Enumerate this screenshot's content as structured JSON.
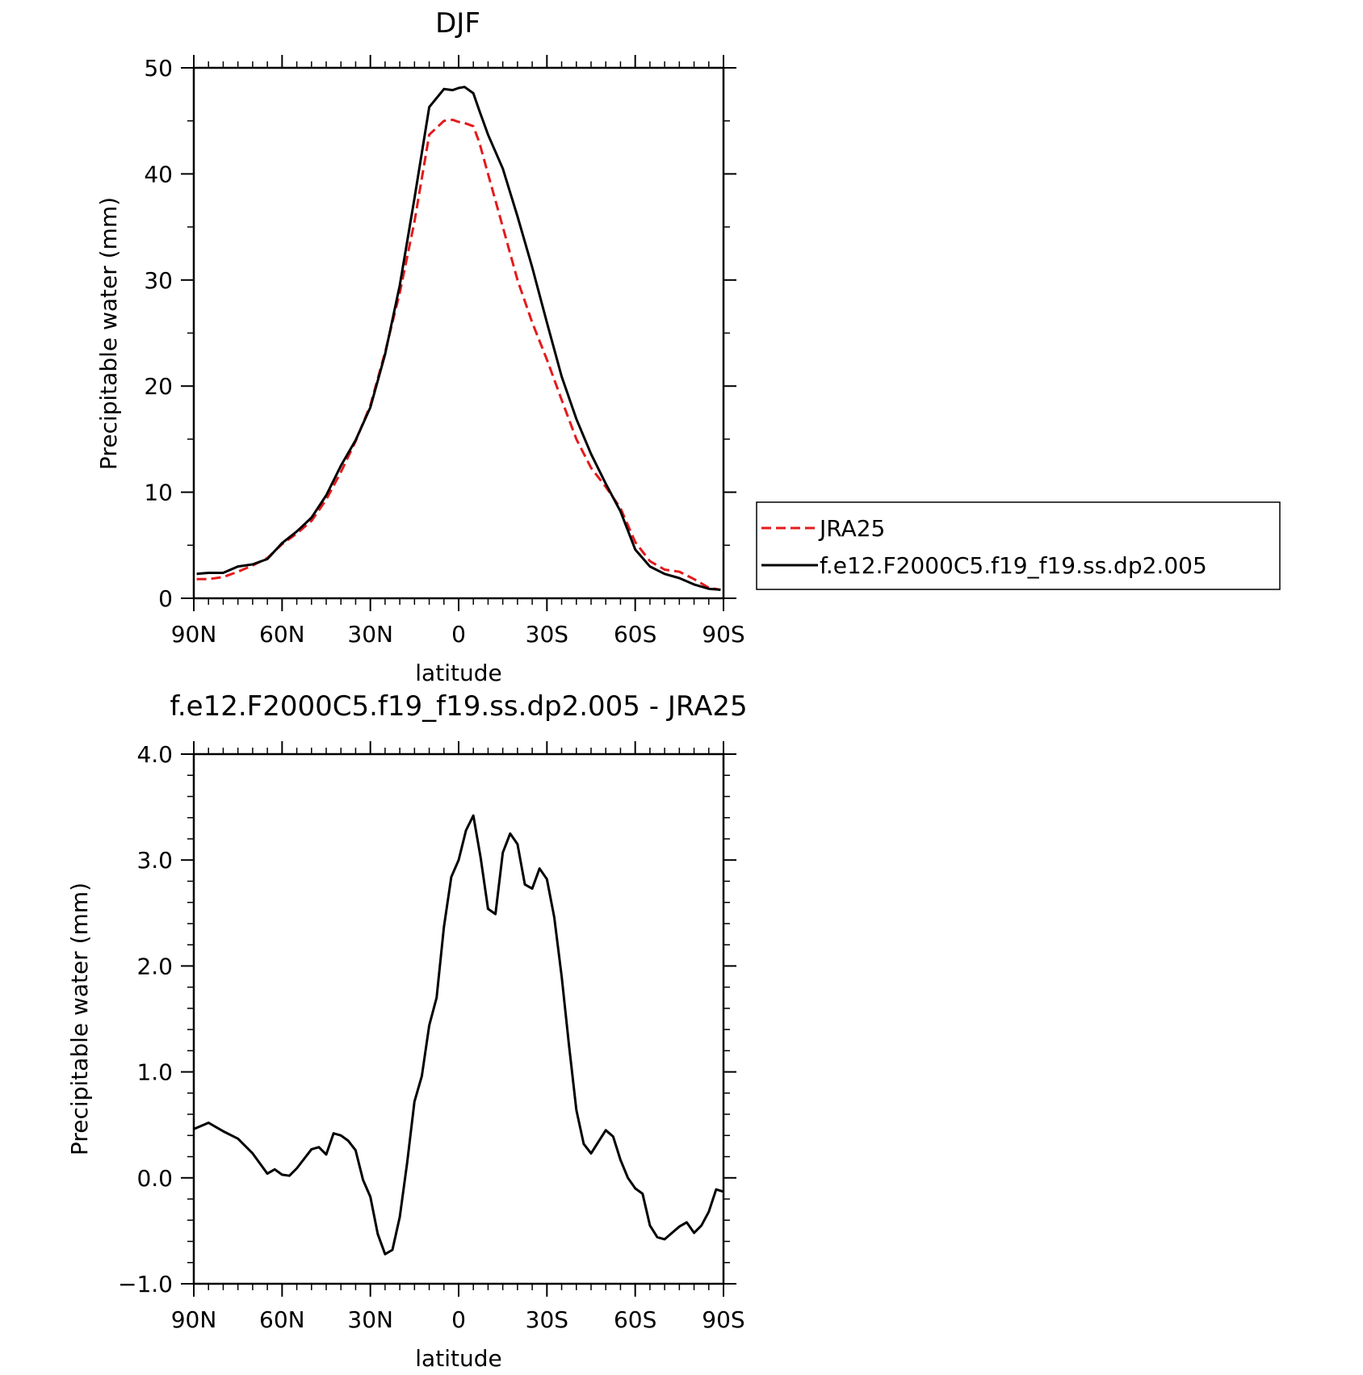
{
  "chart_data": [
    {
      "type": "line",
      "title": "DJF",
      "xlabel": "latitude",
      "ylabel": "Precipitable water (mm)",
      "xlim": [
        90,
        -90
      ],
      "ylim": [
        0,
        50
      ],
      "x_ticks": [
        90,
        60,
        30,
        0,
        -30,
        -60,
        -90
      ],
      "x_tick_labels": [
        "90N",
        "60N",
        "30N",
        "0",
        "30S",
        "60S",
        "90S"
      ],
      "y_ticks": [
        0,
        10,
        20,
        30,
        40,
        50
      ],
      "y_tick_labels": [
        "0",
        "10",
        "20",
        "30",
        "40",
        "50"
      ],
      "grid": false,
      "legend": {
        "placement": "right"
      },
      "series": [
        {
          "name": "JRA25",
          "color": "#e41a1c",
          "dash": "dashed",
          "x": [
            89,
            85,
            80,
            75,
            70,
            65,
            60,
            55,
            50,
            45,
            40,
            35,
            30,
            25,
            20,
            15,
            10,
            5,
            2,
            0,
            -2,
            -5,
            -7,
            -10,
            -15,
            -20,
            -25,
            -30,
            -35,
            -40,
            -45,
            -50,
            -55,
            -60,
            -65,
            -70,
            -75,
            -80,
            -85,
            -89
          ],
          "y": [
            1.8,
            1.8,
            2.0,
            2.5,
            3.1,
            3.8,
            5.1,
            6.1,
            7.3,
            9.3,
            11.9,
            14.8,
            18.2,
            23.2,
            28.8,
            35.5,
            43.7,
            45.0,
            45.1,
            44.9,
            44.8,
            44.5,
            43.0,
            40.0,
            35.0,
            30.0,
            26.0,
            22.5,
            18.7,
            15.0,
            12.3,
            10.5,
            8.5,
            5.3,
            3.5,
            2.7,
            2.5,
            1.8,
            1.0,
            0.8
          ]
        },
        {
          "name": "f.e12.F2000C5.f19_f19.ss.dp2.005",
          "color": "#000000",
          "dash": "solid",
          "x": [
            89,
            85,
            80,
            75,
            70,
            65,
            60,
            55,
            50,
            45,
            40,
            35,
            30,
            25,
            20,
            15,
            10,
            5,
            2,
            0,
            -2,
            -5,
            -7,
            -10,
            -15,
            -20,
            -25,
            -30,
            -35,
            -40,
            -45,
            -50,
            -55,
            -60,
            -65,
            -70,
            -75,
            -80,
            -85,
            -89
          ],
          "y": [
            2.3,
            2.4,
            2.4,
            3.0,
            3.2,
            3.7,
            5.2,
            6.3,
            7.6,
            9.7,
            12.5,
            14.9,
            18.0,
            23.0,
            29.5,
            37.7,
            46.3,
            48.0,
            47.9,
            48.1,
            48.2,
            47.6,
            46.0,
            43.7,
            40.5,
            36.0,
            31.2,
            26.0,
            20.9,
            16.9,
            13.6,
            10.8,
            8.2,
            4.6,
            3.0,
            2.3,
            1.9,
            1.3,
            0.9,
            0.8
          ]
        }
      ]
    },
    {
      "type": "line",
      "title": "f.e12.F2000C5.f19_f19.ss.dp2.005 - JRA25",
      "xlabel": "latitude",
      "ylabel": "Precipitable water (mm)",
      "xlim": [
        90,
        -90
      ],
      "ylim": [
        -1.0,
        4.0
      ],
      "x_ticks": [
        90,
        60,
        30,
        0,
        -30,
        -60,
        -90
      ],
      "x_tick_labels": [
        "90N",
        "60N",
        "30N",
        "0",
        "30S",
        "60S",
        "90S"
      ],
      "y_ticks": [
        -1.0,
        0.0,
        1.0,
        2.0,
        3.0,
        4.0
      ],
      "y_tick_labels": [
        "−1.0",
        "0.0",
        "1.0",
        "2.0",
        "3.0",
        "4.0"
      ],
      "grid": false,
      "series": [
        {
          "color": "#000000",
          "dash": "solid",
          "x": [
            90,
            85,
            80,
            75,
            70,
            65,
            62.5,
            60,
            57.5,
            55,
            50,
            47.5,
            45,
            42.5,
            40,
            37.5,
            35,
            32.5,
            30,
            27.5,
            25,
            22.5,
            20,
            17.5,
            15,
            12.5,
            10,
            7.5,
            5,
            2.5,
            0,
            -2.5,
            -5,
            -7.5,
            -10,
            -12.5,
            -15,
            -17.5,
            -20,
            -22.5,
            -25,
            -27.5,
            -30,
            -32.5,
            -35,
            -37.5,
            -40,
            -42.5,
            -45,
            -47.5,
            -50,
            -52.5,
            -55,
            -57.5,
            -60,
            -62.5,
            -65,
            -67.5,
            -70,
            -72.5,
            -75,
            -77.5,
            -80,
            -82.5,
            -85,
            -87.5,
            -90
          ],
          "y": [
            0.46,
            0.52,
            0.44,
            0.37,
            0.23,
            0.04,
            0.08,
            0.03,
            0.02,
            0.09,
            0.27,
            0.29,
            0.22,
            0.42,
            0.4,
            0.35,
            0.26,
            -0.02,
            -0.18,
            -0.53,
            -0.72,
            -0.68,
            -0.37,
            0.14,
            0.72,
            0.96,
            1.44,
            1.7,
            2.37,
            2.84,
            3.0,
            3.28,
            3.42,
            3.02,
            2.54,
            2.49,
            3.07,
            3.25,
            3.15,
            2.77,
            2.73,
            2.92,
            2.82,
            2.46,
            1.9,
            1.25,
            0.64,
            0.32,
            0.23,
            0.34,
            0.45,
            0.39,
            0.17,
            0.0,
            -0.1,
            -0.15,
            -0.45,
            -0.56,
            -0.58,
            -0.52,
            -0.46,
            -0.42,
            -0.52,
            -0.45,
            -0.32,
            -0.11,
            -0.13
          ]
        }
      ]
    }
  ]
}
